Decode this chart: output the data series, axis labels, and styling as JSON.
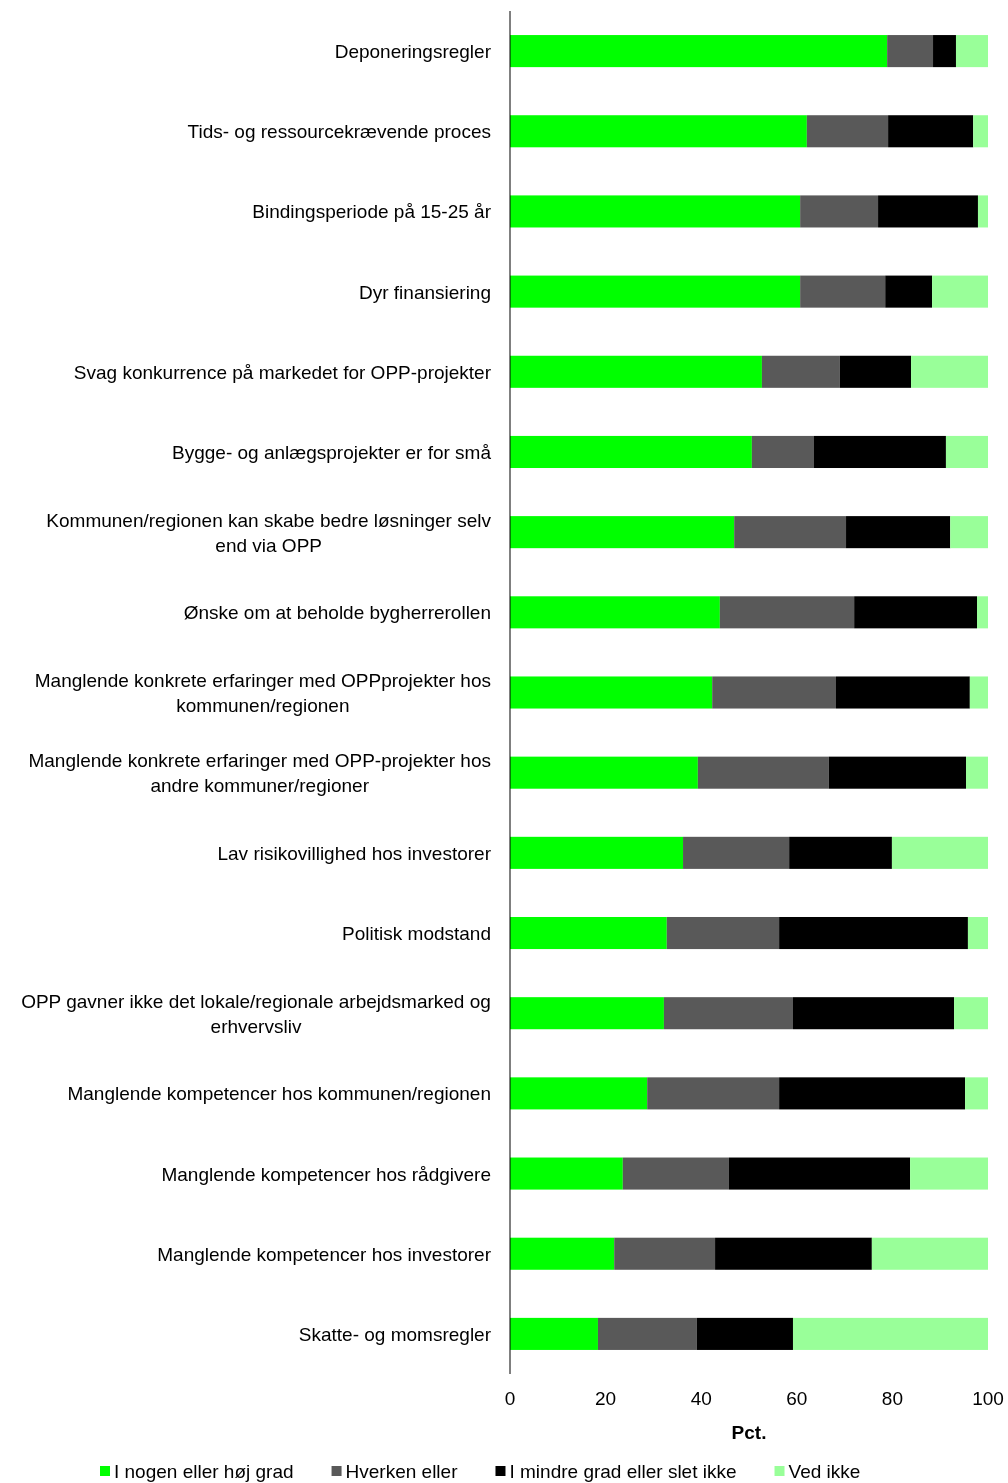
{
  "chart_data": {
    "type": "bar",
    "orientation": "horizontal",
    "stacked": true,
    "xlabel": "Pct.",
    "xlim": [
      0,
      100
    ],
    "xticks": [
      0,
      20,
      40,
      60,
      80,
      100
    ],
    "grid": false,
    "legend": "bottom",
    "categories": [
      "Deponeringsregler",
      "Tids- og ressourcekrævende proces",
      "Bindingsperiode på 15-25 år",
      "Dyr finansiering",
      "Svag konkurrence på markedet for OPP-projekter",
      "Bygge- og anlægsprojekter er for små",
      "Kommunen/regionen kan skabe bedre løsninger selv end via OPP",
      "Ønske om at beholde bygherrerollen",
      "Manglende konkrete erfaringer med OPPprojekter hos kommunen/regionen",
      "Manglende konkrete erfaringer med OPP-projekter hos andre kommuner/regioner",
      "Lav risikovillighed hos investorer",
      "Politisk modstand",
      "OPP gavner ikke det lokale/regionale arbejdsmarked og erhvervsliv",
      "Manglende kompetencer hos kommunen/regionen",
      "Manglende kompetencer hos rådgivere",
      "Manglende kompetencer hos investorer",
      "Skatte- og momsregler"
    ],
    "series": [
      {
        "name": "I nogen eller høj grad",
        "color": "#00ff00",
        "values": [
          78.9,
          62.1,
          60.7,
          60.7,
          52.7,
          50.6,
          46.9,
          43.9,
          42.3,
          39.3,
          36.2,
          32.8,
          32.2,
          28.7,
          23.6,
          21.8,
          18.4
        ]
      },
      {
        "name": "Hverken eller",
        "color": "#595959",
        "values": [
          9.6,
          17.0,
          16.3,
          17.8,
          16.3,
          13.0,
          23.4,
          28.1,
          25.9,
          27.4,
          22.2,
          23.5,
          27.0,
          27.6,
          22.2,
          21.1,
          20.7
        ]
      },
      {
        "name": "I mindre grad eller slet ikke",
        "color": "#000000",
        "values": [
          4.8,
          17.8,
          20.9,
          9.8,
          14.9,
          27.6,
          21.8,
          25.7,
          28.0,
          28.7,
          21.5,
          39.5,
          33.7,
          38.9,
          37.9,
          32.8,
          20.1
        ]
      },
      {
        "name": "Ved ikke",
        "color": "#99ff99",
        "values": [
          6.7,
          3.1,
          2.1,
          11.7,
          16.1,
          8.8,
          7.9,
          2.3,
          3.8,
          4.6,
          20.1,
          4.2,
          7.1,
          4.8,
          16.3,
          24.3,
          40.8
        ]
      }
    ]
  }
}
